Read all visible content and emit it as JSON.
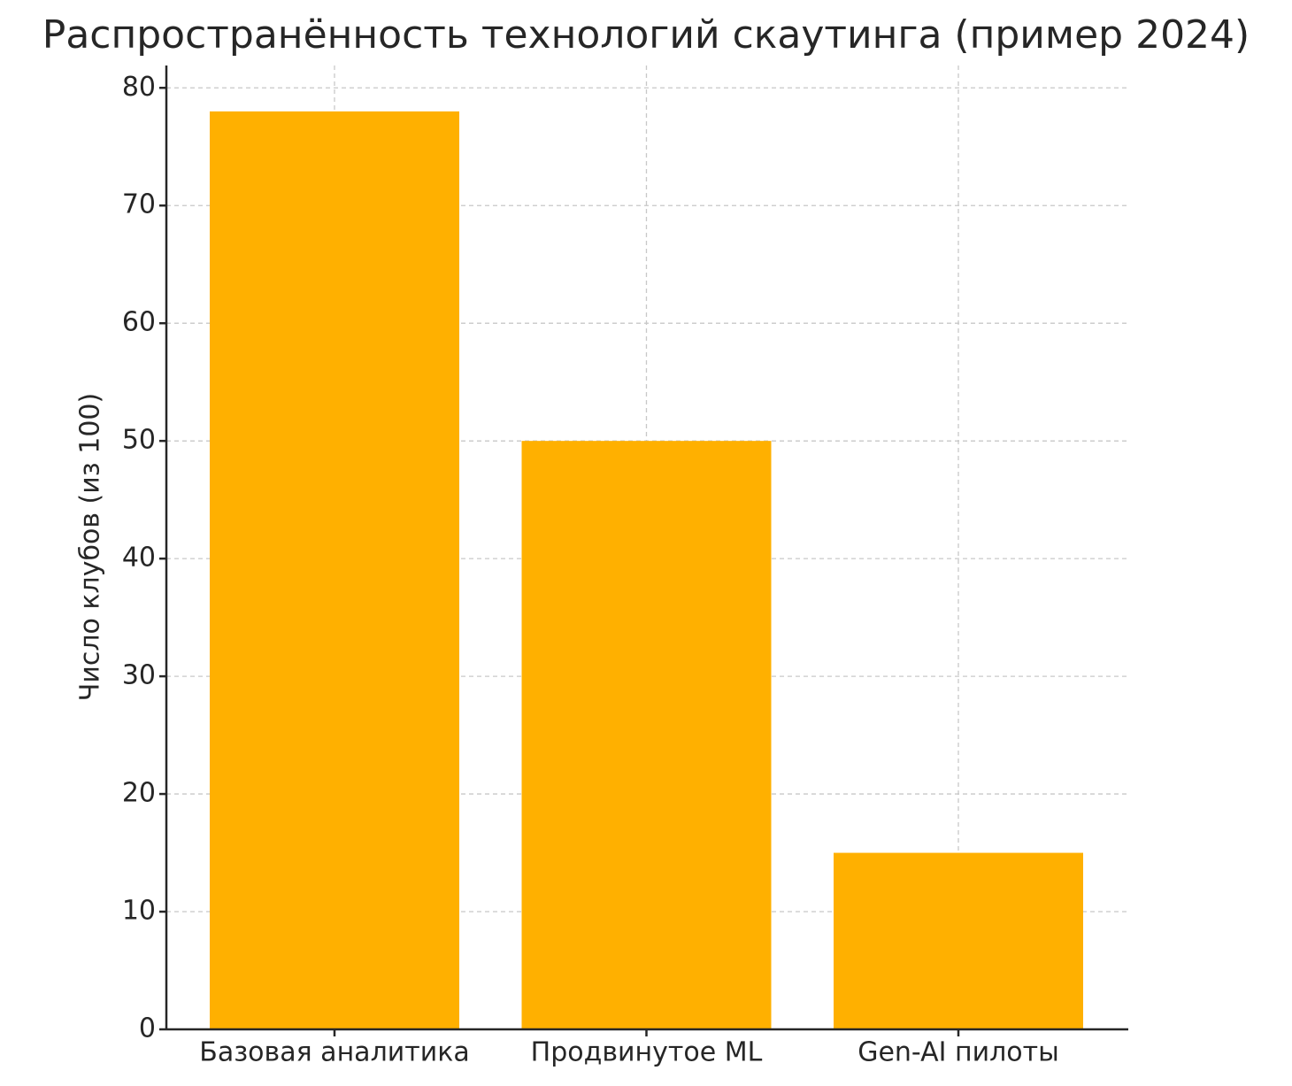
{
  "chart_data": {
    "type": "bar",
    "title": "Распространённость технологий скаутинга (пример 2024)",
    "y_label": "Число клубов (из 100)",
    "categories": [
      "Базовая аналитика",
      "Продвинутое ML",
      "Gen-AI пилоты"
    ],
    "values": [
      78,
      50,
      15
    ],
    "color": "#ffb000",
    "ylim": [
      0,
      81.9
    ],
    "yticks": [
      0,
      10,
      20,
      30,
      40,
      50,
      60,
      70,
      80
    ],
    "grid": true
  }
}
